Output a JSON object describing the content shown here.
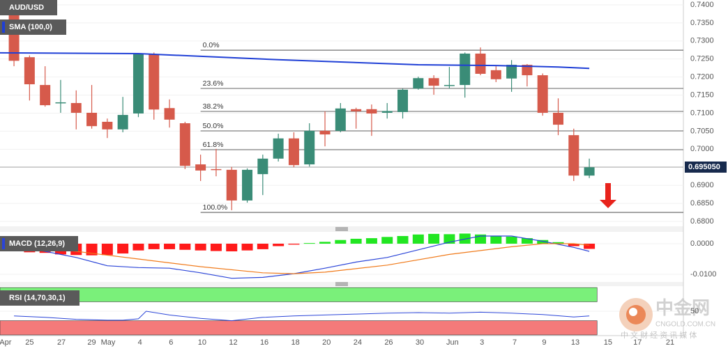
{
  "chart_data": [
    {
      "type": "candlestick",
      "title": "AUD/USD",
      "indicator": "SMA (100,0)",
      "x": [
        0,
        1,
        2,
        3,
        4,
        5,
        6,
        7,
        8,
        9,
        10,
        11,
        12,
        13,
        14,
        15,
        16,
        17,
        18,
        19,
        20,
        21,
        22,
        23,
        24,
        25,
        26,
        27,
        28,
        29,
        30,
        31,
        32,
        33,
        34,
        35,
        36,
        37
      ],
      "open": [
        0.7395,
        0.7255,
        0.7178,
        0.7128,
        0.7128,
        0.7101,
        0.7076,
        0.7055,
        0.7099,
        0.7263,
        0.7114,
        0.7072,
        0.6958,
        0.6945,
        0.6943,
        0.6858,
        0.6931,
        0.6974,
        0.703,
        0.6958,
        0.7051,
        0.7051,
        0.7111,
        0.7111,
        0.7101,
        0.7103,
        0.7168,
        0.7197,
        0.7176,
        0.7178,
        0.7265,
        0.7219,
        0.7196,
        0.7234,
        0.7205,
        0.7101,
        0.7039,
        0.6927
      ],
      "high": [
        0.742,
        0.726,
        0.723,
        0.7192,
        0.7163,
        0.7178,
        0.7085,
        0.7145,
        0.7265,
        0.7268,
        0.7138,
        0.7076,
        0.6985,
        0.7001,
        0.6951,
        0.6947,
        0.6985,
        0.7043,
        0.7047,
        0.7072,
        0.7105,
        0.7128,
        0.7115,
        0.7124,
        0.7128,
        0.7168,
        0.7201,
        0.7205,
        0.7228,
        0.7268,
        0.7282,
        0.723,
        0.7247,
        0.7236,
        0.721,
        0.7141,
        0.7057,
        0.6974
      ],
      "low": [
        0.723,
        0.7135,
        0.7118,
        0.7101,
        0.7055,
        0.7057,
        0.7031,
        0.7047,
        0.7089,
        0.7082,
        0.706,
        0.6945,
        0.6912,
        0.6925,
        0.6831,
        0.6852,
        0.6873,
        0.6966,
        0.695,
        0.6952,
        0.7008,
        0.7047,
        0.7057,
        0.7037,
        0.7085,
        0.7085,
        0.7165,
        0.7151,
        0.7168,
        0.7143,
        0.7205,
        0.7186,
        0.7159,
        0.7174,
        0.7093,
        0.7039,
        0.6912,
        0.692
      ],
      "close": [
        0.7245,
        0.718,
        0.7122,
        0.713,
        0.7101,
        0.7064,
        0.7055,
        0.7095,
        0.7263,
        0.711,
        0.7082,
        0.6954,
        0.6941,
        0.6944,
        0.6858,
        0.6943,
        0.6974,
        0.703,
        0.6956,
        0.7051,
        0.7041,
        0.7113,
        0.7105,
        0.7099,
        0.7106,
        0.7165,
        0.7197,
        0.7176,
        0.7178,
        0.7265,
        0.7209,
        0.7194,
        0.7234,
        0.7205,
        0.7101,
        0.7068,
        0.6927,
        0.695
      ],
      "up_color": "#3a8c77",
      "down_color": "#d65a4b",
      "sma": {
        "x": [
          -0.9,
          8,
          17,
          26,
          31,
          35,
          37
        ],
        "values": [
          0.7267,
          0.7265,
          0.7248,
          0.7234,
          0.7232,
          0.7228,
          0.7224
        ],
        "color": "#1f3fd6"
      },
      "fibonacci": {
        "start": 12,
        "labels": [
          "0.0%",
          "23.6%",
          "38.2%",
          "50.0%",
          "61.8%",
          "100.0%"
        ],
        "values": [
          0.72745,
          0.71685,
          0.71048,
          0.70508,
          0.69987,
          0.6825
        ]
      },
      "last_price": {
        "value": 0.69505,
        "label": "0.695050"
      },
      "xlim": [
        -0.9,
        43.05
      ],
      "ylim": [
        0.67865,
        0.74135
      ],
      "yticks": [
        {
          "value": 0.74,
          "label": "0.7400"
        },
        {
          "value": 0.735,
          "label": "0.7350"
        },
        {
          "value": 0.73,
          "label": "0.7300"
        },
        {
          "value": 0.725,
          "label": "0.7250"
        },
        {
          "value": 0.72,
          "label": "0.7200"
        },
        {
          "value": 0.715,
          "label": "0.7150"
        },
        {
          "value": 0.71,
          "label": "0.7100"
        },
        {
          "value": 0.705,
          "label": "0.7050"
        },
        {
          "value": 0.7,
          "label": "0.7000"
        },
        {
          "value": 0.695,
          "label": "0.6950"
        },
        {
          "value": 0.69,
          "label": "0.6900"
        },
        {
          "value": 0.685,
          "label": "0.6850"
        },
        {
          "value": 0.68,
          "label": "0.6800"
        }
      ],
      "xticks": [
        {
          "value": -0.55,
          "label": "Apr"
        },
        {
          "value": 1,
          "label": "25"
        },
        {
          "value": 3.05,
          "label": "27"
        },
        {
          "value": 5,
          "label": "29"
        },
        {
          "value": 6.05,
          "label": "May"
        },
        {
          "value": 8.1,
          "label": "4"
        },
        {
          "value": 10.1,
          "label": "6"
        },
        {
          "value": 12.1,
          "label": "10"
        },
        {
          "value": 14.1,
          "label": "12"
        },
        {
          "value": 16.1,
          "label": "16"
        },
        {
          "value": 18.1,
          "label": "18"
        },
        {
          "value": 20.1,
          "label": "20"
        },
        {
          "value": 22.1,
          "label": "24"
        },
        {
          "value": 24.1,
          "label": "26"
        },
        {
          "value": 26.1,
          "label": "30"
        },
        {
          "value": 28.2,
          "label": "Jun"
        },
        {
          "value": 30.1,
          "label": "3"
        },
        {
          "value": 32.2,
          "label": "7"
        },
        {
          "value": 34.1,
          "label": "9"
        },
        {
          "value": 36.1,
          "label": "13"
        },
        {
          "value": 38.2,
          "label": "15"
        },
        {
          "value": 40.1,
          "label": "17"
        },
        {
          "value": 42.2,
          "label": "21"
        }
      ]
    },
    {
      "type": "macd",
      "title": "MACD (12,26,9)",
      "x": [
        0,
        1,
        2,
        3,
        4,
        5,
        6,
        7,
        8,
        9,
        10,
        11,
        12,
        13,
        14,
        15,
        16,
        17,
        18,
        19,
        20,
        21,
        22,
        23,
        24,
        25,
        26,
        27,
        28,
        29,
        30,
        31,
        32,
        33,
        34,
        35,
        36,
        37
      ],
      "histogram": [
        -0.0025,
        -0.0028,
        -0.003,
        -0.0035,
        -0.0037,
        -0.0038,
        -0.0037,
        -0.0032,
        -0.0022,
        -0.0018,
        -0.0018,
        -0.002,
        -0.0022,
        -0.0024,
        -0.0025,
        -0.0022,
        -0.0018,
        -0.0008,
        -0.0003,
        0.0002,
        0.0006,
        0.0012,
        0.0016,
        0.0018,
        0.0022,
        0.0025,
        0.003,
        0.0032,
        0.0031,
        0.0033,
        0.003,
        0.0026,
        0.0023,
        0.0018,
        0.0012,
        0.0005,
        -0.0008,
        -0.0017
      ],
      "up_color": "#22e622",
      "down_color": "#ff1a1a",
      "macd": {
        "x": [
          0,
          2,
          4,
          6,
          8,
          10,
          12,
          14,
          16,
          18,
          20,
          22,
          24,
          26,
          28,
          30,
          32,
          34,
          36,
          37
        ],
        "values": [
          -0.0008,
          -0.0025,
          -0.0045,
          -0.0072,
          -0.0078,
          -0.008,
          -0.0095,
          -0.0113,
          -0.011,
          -0.0098,
          -0.008,
          -0.006,
          -0.0045,
          -0.002,
          0.0005,
          0.0025,
          0.0025,
          0.0008,
          -0.0012,
          -0.0025
        ],
        "color": "#2a44d8"
      },
      "signal": {
        "x": [
          0,
          4,
          8,
          12,
          16,
          18,
          20,
          24,
          28,
          32,
          34,
          36,
          37
        ],
        "values": [
          -0.0005,
          -0.0025,
          -0.005,
          -0.0075,
          -0.0095,
          -0.0098,
          -0.0093,
          -0.007,
          -0.0035,
          -0.001,
          0.0,
          0.0,
          -0.0005
        ],
        "color": "#f07a1a"
      },
      "ylim": [
        -0.0125,
        0.00386
      ],
      "yticks": [
        {
          "value": 0,
          "label": "0.0000"
        },
        {
          "value": -0.01,
          "label": "-0.0100"
        }
      ]
    },
    {
      "type": "rsi",
      "title": "RSI (14,70,30,1)",
      "rsi": {
        "x": [
          0,
          2,
          4,
          6,
          7,
          8,
          8.5,
          10,
          12,
          14,
          16,
          18,
          20,
          22,
          24,
          26,
          28,
          30,
          32,
          34,
          36,
          37
        ],
        "values": [
          40,
          37,
          33,
          31,
          31,
          34,
          50,
          42,
          35,
          30,
          37,
          40,
          42,
          44,
          46,
          47,
          46,
          48,
          46,
          43,
          38,
          40
        ],
        "color": "#2a44d8"
      },
      "overbought": 70,
      "oversold": 30,
      "band_end": 37.5,
      "ylim": [
        0,
        100
      ],
      "yticks": [
        50
      ]
    }
  ],
  "watermark": {
    "name": "中金网",
    "site": "CNGOLD.COM.CN",
    "tagline": "中 文 财 经 资 讯 媒 体"
  }
}
